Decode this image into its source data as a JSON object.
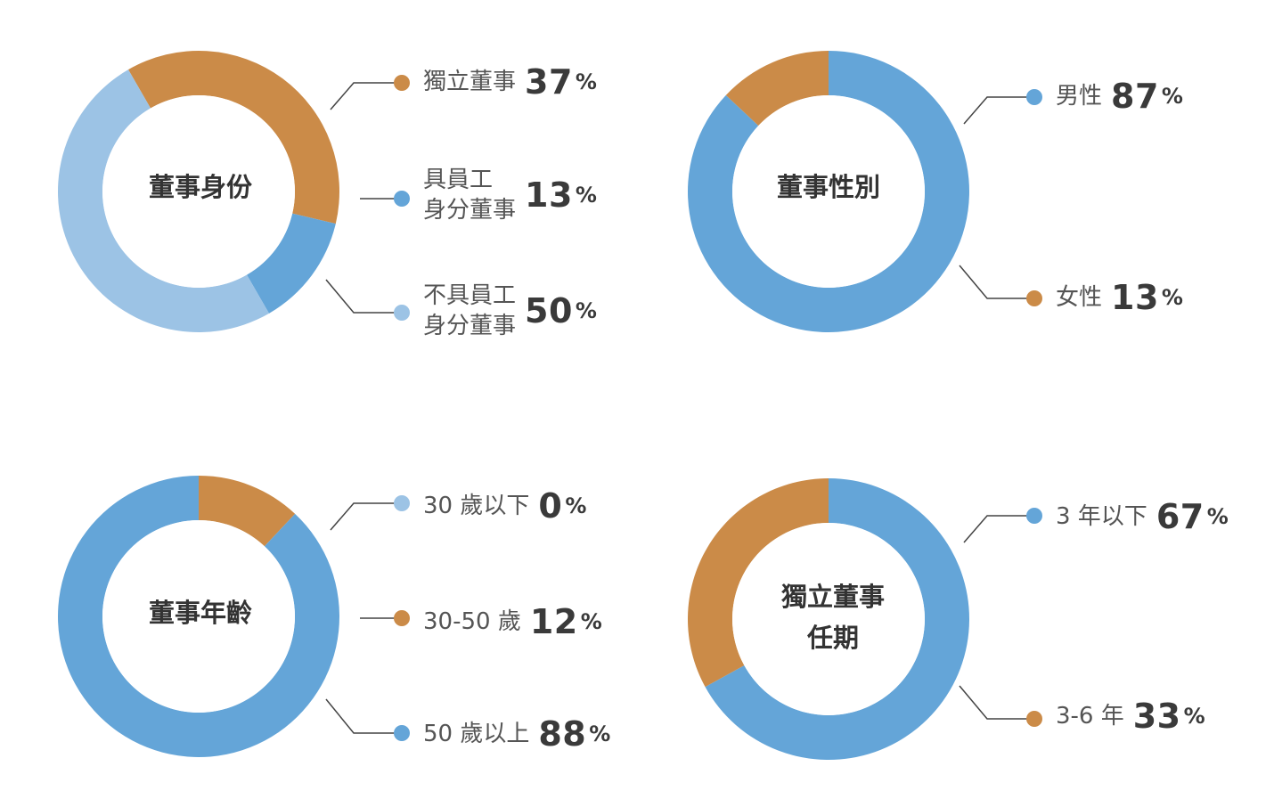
{
  "colors": {
    "orange": "#CB8B48",
    "blue": "#64A5D8",
    "lightblue": "#9CC3E5",
    "line": "#444444"
  },
  "chart_data": [
    {
      "type": "pie",
      "title": "董事身份",
      "slices": [
        {
          "label": [
            "獨立董事"
          ],
          "value": 37,
          "color": "orange"
        },
        {
          "label": [
            "具員工",
            "身分董事"
          ],
          "value": 13,
          "color": "blue"
        },
        {
          "label": [
            "不具員工",
            "身分董事"
          ],
          "value": 50,
          "color": "lightblue"
        }
      ]
    },
    {
      "type": "pie",
      "title": "董事性別",
      "slices": [
        {
          "label": [
            "男性"
          ],
          "value": 87,
          "color": "blue"
        },
        {
          "label": [
            "女性"
          ],
          "value": 13,
          "color": "orange"
        }
      ]
    },
    {
      "type": "pie",
      "title": "董事年齡",
      "slices": [
        {
          "label": [
            "30 歲以下"
          ],
          "value": 0,
          "color": "lightblue"
        },
        {
          "label": [
            "30-50 歲"
          ],
          "value": 12,
          "color": "orange"
        },
        {
          "label": [
            "50 歲以上"
          ],
          "value": 88,
          "color": "blue"
        }
      ]
    },
    {
      "type": "pie",
      "title": "獨立董事任期",
      "title_lines": [
        "獨立董事",
        "任期"
      ],
      "slices": [
        {
          "label": [
            "3 年以下"
          ],
          "value": 67,
          "color": "blue"
        },
        {
          "label": [
            "3-6 年"
          ],
          "value": 33,
          "color": "orange"
        }
      ]
    }
  ],
  "percent_sign": "%"
}
